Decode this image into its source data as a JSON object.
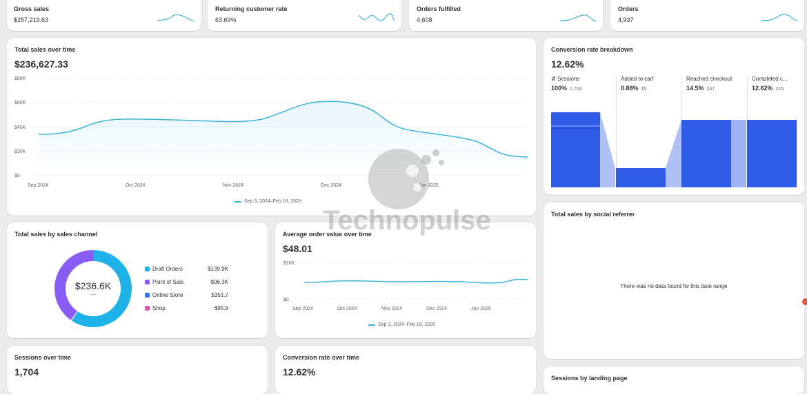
{
  "kpis": [
    {
      "label": "Gross sales",
      "value": "$257,219.63"
    },
    {
      "label": "Returning customer rate",
      "value": "63.69%"
    },
    {
      "label": "Orders fulfilled",
      "value": "4,608"
    },
    {
      "label": "Orders",
      "value": "4,937"
    }
  ],
  "total_sales": {
    "title": "Total sales over time",
    "value": "$236,627.33",
    "y_ticks": [
      "$80K",
      "$60K",
      "$40K",
      "$20K",
      "$0"
    ],
    "x_ticks": [
      "Sep 2024",
      "Oct 2024",
      "Nov 2024",
      "Dec 2024",
      "Jan 2025"
    ],
    "legend": "Sep 3, 2024–Feb 18, 2025"
  },
  "conversion_breakdown": {
    "title": "Conversion rate breakdown",
    "value": "12.62%",
    "steps": [
      {
        "label": "Sessions",
        "pct": "100%",
        "count": "1,704"
      },
      {
        "label": "Added to cart",
        "pct": "0.88%",
        "count": "15"
      },
      {
        "label": "Reached checkout",
        "pct": "14.5%",
        "count": "247"
      },
      {
        "label": "Completed c...",
        "pct": "12.62%",
        "count": "215"
      }
    ]
  },
  "sales_channel": {
    "title": "Total sales by sales channel",
    "center_value": "$236.6K",
    "center_sub": "—",
    "channels": [
      {
        "name": "Draft Orders",
        "value": "$139.9K",
        "color": "#1fb2e8"
      },
      {
        "name": "Point of Sale",
        "value": "$96.3K",
        "color": "#8a5cf6"
      },
      {
        "name": "Online Store",
        "value": "$351.7",
        "color": "#3a6ee8"
      },
      {
        "name": "Shop",
        "value": "$95.9",
        "color": "#d45bb0"
      }
    ]
  },
  "aov": {
    "title": "Average order value over time",
    "value": "$48.01",
    "y_ticks": [
      "$100",
      "$0"
    ],
    "x_ticks": [
      "Sep 2024",
      "Oct 2024",
      "Nov 2024",
      "Dec 2024",
      "Jan 2025"
    ],
    "legend": "Sep 3, 2024–Feb 18, 2025"
  },
  "social_referrer": {
    "title": "Total sales by social referrer",
    "empty_text": "There was no data found for this date range"
  },
  "sessions": {
    "title": "Sessions over time",
    "value": "1,704"
  },
  "conversion_over_time": {
    "title": "Conversion rate over time",
    "value": "12.62%"
  },
  "landing_page": {
    "title": "Sessions by landing page"
  },
  "watermark": {
    "text": "Technopulse"
  },
  "colors": {
    "accent": "#3bb3d9",
    "funnel": "#2f5be6"
  }
}
